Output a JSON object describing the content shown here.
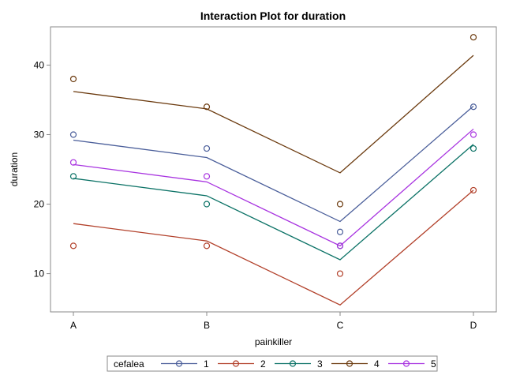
{
  "chart_data": {
    "type": "line",
    "title": "Interaction Plot for duration",
    "xlabel": "painkiller",
    "ylabel": "duration",
    "categories": [
      "A",
      "B",
      "C",
      "D"
    ],
    "ylim": [
      4.5,
      45.5
    ],
    "yticks": [
      10,
      20,
      30,
      40
    ],
    "grid": false,
    "legend": {
      "title": "cefalea",
      "placement": "bottom"
    },
    "series": [
      {
        "name": "1",
        "color": "#4a5e9a",
        "line": [
          29.2,
          26.7,
          17.5,
          34.1
        ],
        "points": [
          30,
          28,
          16,
          34
        ]
      },
      {
        "name": "2",
        "color": "#b2402a",
        "line": [
          17.2,
          14.7,
          5.5,
          22.0
        ],
        "points": [
          14,
          14,
          10,
          22
        ]
      },
      {
        "name": "3",
        "color": "#0b7266",
        "line": [
          23.7,
          21.2,
          12.0,
          28.6
        ],
        "points": [
          24,
          20,
          14,
          28
        ]
      },
      {
        "name": "4",
        "color": "#6b3a0e",
        "line": [
          36.2,
          33.7,
          24.5,
          41.4
        ],
        "points": [
          38,
          34,
          20,
          44
        ]
      },
      {
        "name": "5",
        "color": "#a833e0",
        "line": [
          25.7,
          23.2,
          14.0,
          30.8
        ],
        "points": [
          26,
          24,
          14,
          30
        ]
      }
    ]
  }
}
